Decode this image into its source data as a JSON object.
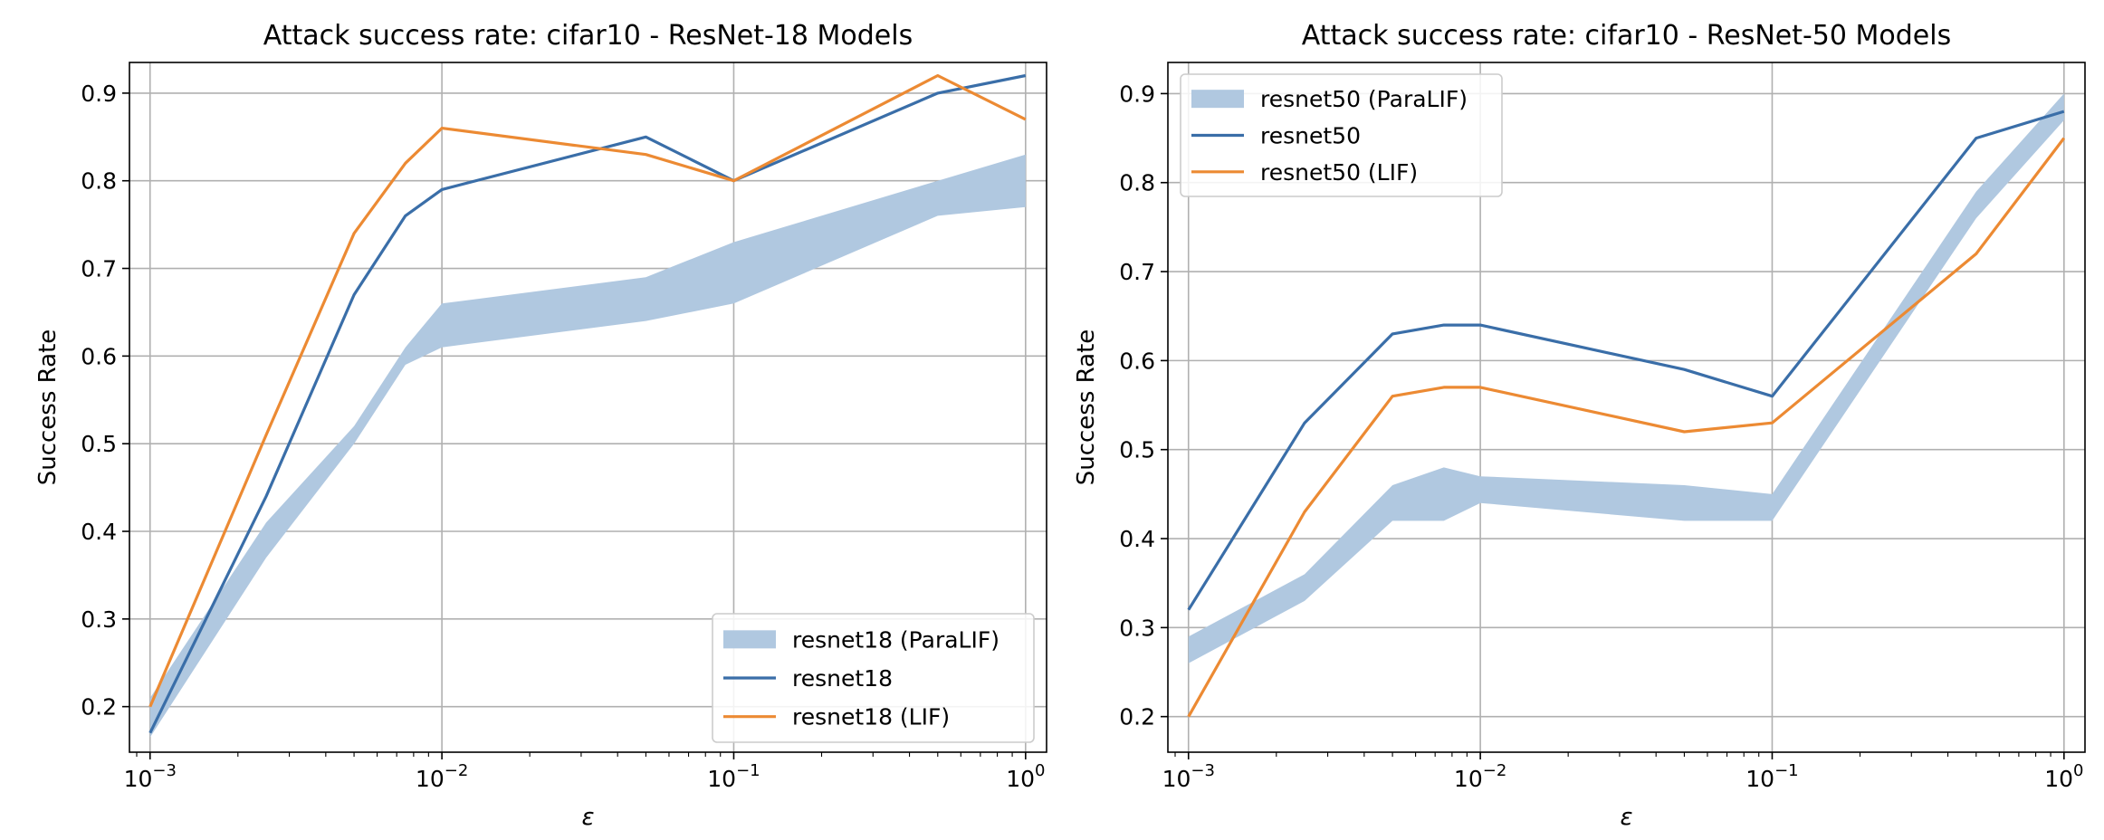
{
  "chart_data": [
    {
      "type": "line",
      "title": "Attack success rate: cifar10 - ResNet-18 Models",
      "xlabel": "ε",
      "ylabel": "Success Rate",
      "xscale": "log",
      "xlim": [
        0.00085,
        1.18
      ],
      "ylim": [
        0.148,
        0.935
      ],
      "xticks": [
        {
          "value": 0.001,
          "base": "10",
          "exp": "−3"
        },
        {
          "value": 0.01,
          "base": "10",
          "exp": "−2"
        },
        {
          "value": 0.1,
          "base": "10",
          "exp": "−1"
        },
        {
          "value": 1,
          "base": "10",
          "exp": "0"
        }
      ],
      "yticks": [
        {
          "value": 0.2,
          "label": "0.2"
        },
        {
          "value": 0.3,
          "label": "0.3"
        },
        {
          "value": 0.4,
          "label": "0.4"
        },
        {
          "value": 0.5,
          "label": "0.5"
        },
        {
          "value": 0.6,
          "label": "0.6"
        },
        {
          "value": 0.7,
          "label": "0.7"
        },
        {
          "value": 0.8,
          "label": "0.8"
        },
        {
          "value": 0.9,
          "label": "0.9"
        }
      ],
      "grid": true,
      "legend_position": "bottom-right",
      "bands": [
        {
          "name": "resnet18 (ParaLIF)",
          "color": "#b0c8e0",
          "x": [
            0.001,
            0.0025,
            0.005,
            0.0075,
            0.01,
            0.05,
            0.1,
            0.5,
            1
          ],
          "lower": [
            0.165,
            0.37,
            0.5,
            0.59,
            0.61,
            0.64,
            0.66,
            0.76,
            0.77
          ],
          "upper": [
            0.21,
            0.41,
            0.52,
            0.61,
            0.66,
            0.69,
            0.73,
            0.8,
            0.83
          ]
        }
      ],
      "series": [
        {
          "name": "resnet18",
          "color": "#3a6ea8",
          "x": [
            0.001,
            0.0025,
            0.005,
            0.0075,
            0.01,
            0.05,
            0.1,
            0.5,
            1
          ],
          "values": [
            0.17,
            0.44,
            0.67,
            0.76,
            0.79,
            0.85,
            0.8,
            0.9,
            0.92
          ]
        },
        {
          "name": "resnet18 (LIF)",
          "color": "#ec8a33",
          "x": [
            0.001,
            0.0025,
            0.005,
            0.0075,
            0.01,
            0.05,
            0.1,
            0.5,
            1
          ],
          "values": [
            0.2,
            0.51,
            0.74,
            0.82,
            0.86,
            0.83,
            0.8,
            0.92,
            0.87
          ]
        }
      ]
    },
    {
      "type": "line",
      "title": "Attack success rate: cifar10 - ResNet-50 Models",
      "xlabel": "ε",
      "ylabel": "Success Rate",
      "xscale": "log",
      "xlim": [
        0.00085,
        1.18
      ],
      "ylim": [
        0.16,
        0.935
      ],
      "xticks": [
        {
          "value": 0.001,
          "base": "10",
          "exp": "−3"
        },
        {
          "value": 0.01,
          "base": "10",
          "exp": "−2"
        },
        {
          "value": 0.1,
          "base": "10",
          "exp": "−1"
        },
        {
          "value": 1,
          "base": "10",
          "exp": "0"
        }
      ],
      "yticks": [
        {
          "value": 0.2,
          "label": "0.2"
        },
        {
          "value": 0.3,
          "label": "0.3"
        },
        {
          "value": 0.4,
          "label": "0.4"
        },
        {
          "value": 0.5,
          "label": "0.5"
        },
        {
          "value": 0.6,
          "label": "0.6"
        },
        {
          "value": 0.7,
          "label": "0.7"
        },
        {
          "value": 0.8,
          "label": "0.8"
        },
        {
          "value": 0.9,
          "label": "0.9"
        }
      ],
      "grid": true,
      "legend_position": "top-left",
      "bands": [
        {
          "name": "resnet50 (ParaLIF)",
          "color": "#b0c8e0",
          "x": [
            0.001,
            0.0025,
            0.005,
            0.0075,
            0.01,
            0.05,
            0.1,
            0.5,
            1
          ],
          "lower": [
            0.26,
            0.33,
            0.42,
            0.42,
            0.44,
            0.42,
            0.42,
            0.76,
            0.87
          ],
          "upper": [
            0.29,
            0.36,
            0.46,
            0.48,
            0.47,
            0.46,
            0.45,
            0.79,
            0.9
          ]
        }
      ],
      "series": [
        {
          "name": "resnet50",
          "color": "#3a6ea8",
          "x": [
            0.001,
            0.0025,
            0.005,
            0.0075,
            0.01,
            0.05,
            0.1,
            0.5,
            1
          ],
          "values": [
            0.32,
            0.53,
            0.63,
            0.64,
            0.64,
            0.59,
            0.56,
            0.85,
            0.88
          ]
        },
        {
          "name": "resnet50 (LIF)",
          "color": "#ec8a33",
          "x": [
            0.001,
            0.0025,
            0.005,
            0.0075,
            0.01,
            0.05,
            0.1,
            0.5,
            1
          ],
          "values": [
            0.2,
            0.43,
            0.56,
            0.57,
            0.57,
            0.52,
            0.53,
            0.72,
            0.85
          ]
        }
      ]
    }
  ]
}
